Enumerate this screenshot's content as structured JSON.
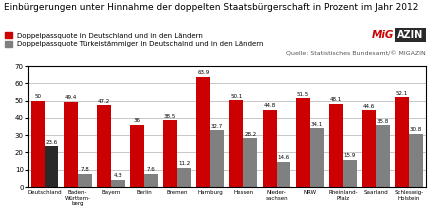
{
  "chart_data": {
    "type": "bar",
    "title": "Einbürgerungen unter Hinnahme der doppelten Staatsbürgerschaft in Prozent im Jahr 2012",
    "annotations": [
      "Quelle: Statistisches Bundesamt/© MIGAZIN",
      "MiG",
      "AZIN"
    ],
    "categories": [
      "Deutschland",
      "Baden-\nWürttem-\nberg",
      "Bayern",
      "Berlin",
      "Bremen",
      "Hamburg",
      "Hessen",
      "Nieder-\nsachsen",
      "NRW",
      "Rheinland-\nPfalz",
      "Saarland",
      "Schleswig-\nHolstein"
    ],
    "series": [
      {
        "name": "Doppelpassquote in Deutschland und in den Ländern",
        "color": "#cc0000",
        "values": [
          50,
          49.4,
          47.2,
          36,
          38.5,
          63.9,
          50.1,
          44.8,
          51.5,
          48.1,
          44.6,
          52.1
        ]
      },
      {
        "name": "Doppelpassquote Türkeistämmiger in Deutschalnd und in den Ländern",
        "color": "#808080",
        "colors": [
          "#2a2a2a",
          "#808080",
          "#808080",
          "#808080",
          "#808080",
          "#808080",
          "#808080",
          "#808080",
          "#808080",
          "#808080",
          "#808080",
          "#808080"
        ],
        "values": [
          23.6,
          7.8,
          4.3,
          7.6,
          11.2,
          32.7,
          28.2,
          14.6,
          34.1,
          15.9,
          35.8,
          30.8
        ]
      }
    ],
    "ylim": [
      0,
      70
    ],
    "yticks": [
      0,
      10,
      20,
      30,
      40,
      50,
      60,
      70
    ],
    "grid": true,
    "legend": "upper left",
    "data_labels": true
  }
}
